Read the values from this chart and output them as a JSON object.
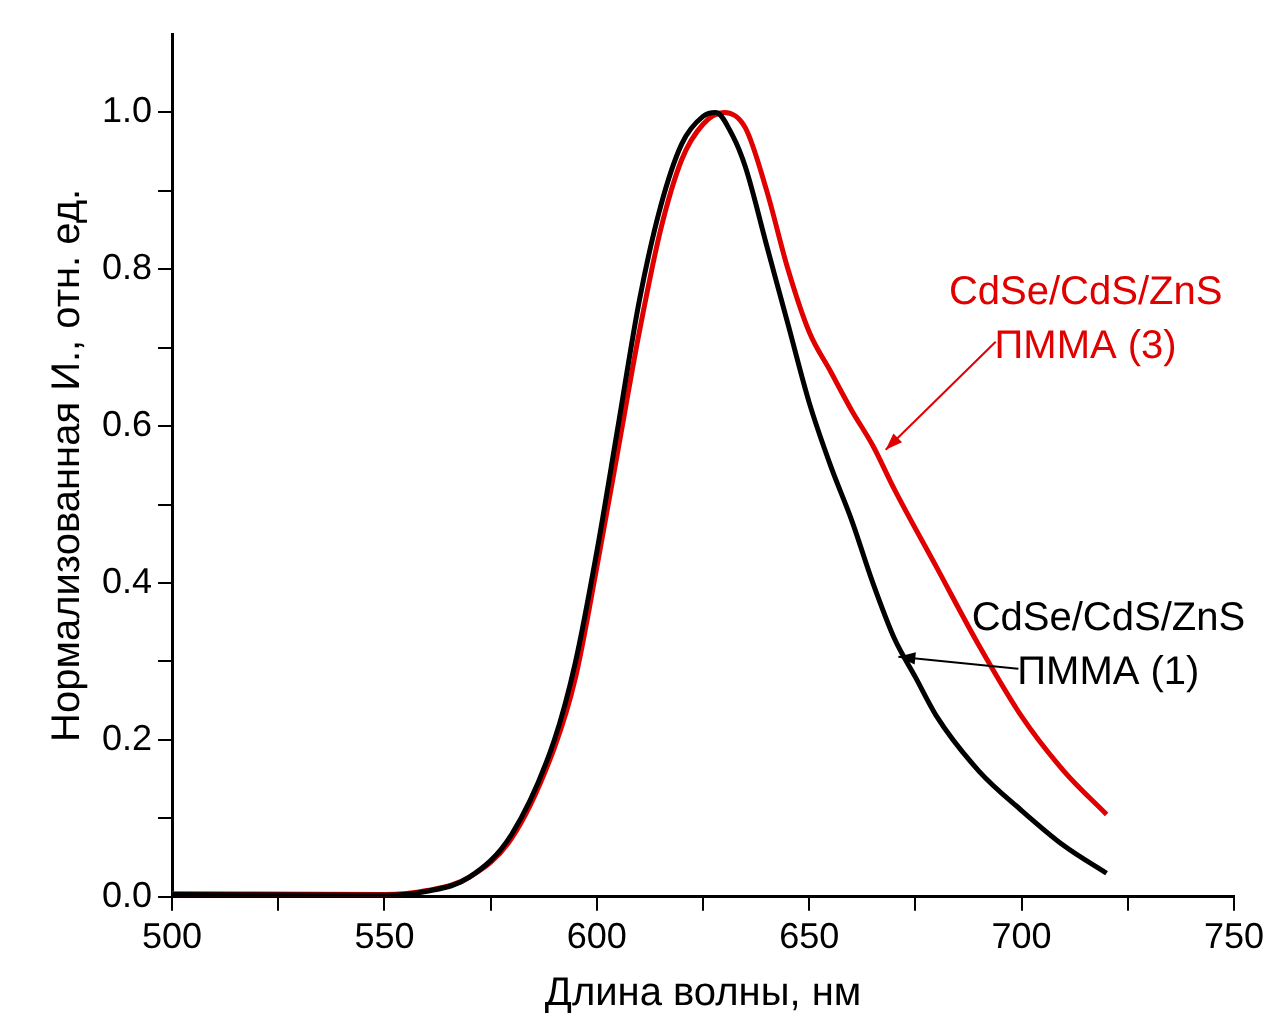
{
  "chart_data": {
    "type": "line",
    "xlabel": "Длина волны, нм",
    "ylabel": "Нормализованная И., отн. ед.",
    "xlim": [
      500,
      750
    ],
    "ylim": [
      0,
      1.1
    ],
    "xticks": [
      500,
      {
        "value": 525,
        "label": null
      },
      550,
      {
        "value": 575,
        "label": null
      },
      600,
      {
        "value": 625,
        "label": null
      },
      650,
      {
        "value": 675,
        "label": null
      },
      700,
      {
        "value": 725,
        "label": null
      },
      750
    ],
    "yticks": [
      {
        "value": 0,
        "label": "0.0"
      },
      {
        "value": 0.1,
        "label": null
      },
      0.2,
      {
        "value": 0.3,
        "label": null
      },
      0.4,
      {
        "value": 0.5,
        "label": null
      },
      0.6,
      {
        "value": 0.7,
        "label": null
      },
      0.8,
      {
        "value": 0.9,
        "label": null
      },
      {
        "value": 1,
        "label": "1.0"
      }
    ],
    "grid": false,
    "legend": false,
    "marker": "none",
    "line_style": "solid",
    "x": [
      500,
      550,
      560,
      570,
      580,
      590,
      595,
      600,
      605,
      610,
      615,
      620,
      625,
      628,
      632,
      635,
      640,
      645,
      650,
      655,
      660,
      665,
      670,
      675,
      680,
      690,
      700,
      710,
      720
    ],
    "series": [
      {
        "color": "#000000",
        "values": [
          0.003,
          0.002,
          0.007,
          0.025,
          0.08,
          0.2,
          0.3,
          0.44,
          0.6,
          0.76,
          0.88,
          0.96,
          0.995,
          1.0,
          0.97,
          0.93,
          0.83,
          0.73,
          0.63,
          0.55,
          0.48,
          0.4,
          0.33,
          0.28,
          0.23,
          0.16,
          0.11,
          0.065,
          0.03
        ]
      },
      {
        "color": "#e00000",
        "x": [
          500,
          550,
          560,
          570,
          580,
          590,
          595,
          600,
          605,
          610,
          615,
          620,
          625,
          630,
          635,
          640,
          645,
          650,
          655,
          660,
          665,
          670,
          680,
          690,
          700,
          710,
          720
        ],
        "values": [
          0.004,
          0.003,
          0.008,
          0.025,
          0.075,
          0.19,
          0.28,
          0.42,
          0.57,
          0.72,
          0.85,
          0.94,
          0.985,
          1.0,
          0.98,
          0.9,
          0.8,
          0.72,
          0.67,
          0.62,
          0.575,
          0.52,
          0.42,
          0.32,
          0.23,
          0.16,
          0.105
        ]
      }
    ],
    "annotations": [
      {
        "text": "CdSe/CdS/ZnS ПММА (1)",
        "x": 671,
        "y": 0.306
      },
      {
        "text": "CdSe/CdS/ZnS ПММА (3)",
        "x": 668,
        "y": 0.57
      }
    ]
  }
}
